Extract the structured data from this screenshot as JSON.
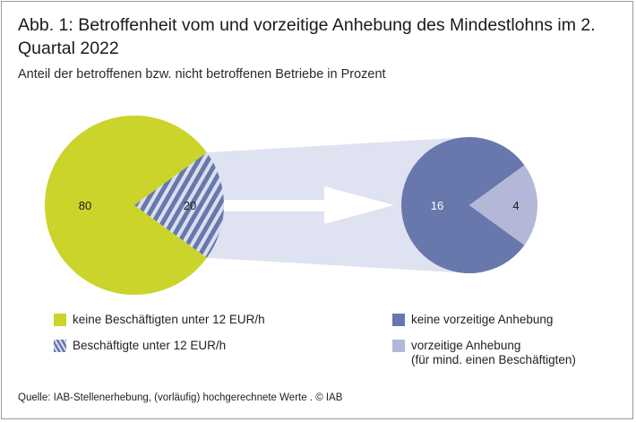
{
  "title": "Abb. 1: Betroffenheit vom und vorzeitige Anhebung  des Mindestlohns im 2. Quartal 2022",
  "subtitle": "Anteil der betroffenen bzw. nicht betroffenen Betriebe in Prozent",
  "colors": {
    "olive": "#cad42b",
    "blue": "#6878ad",
    "light_blue": "#b3b8d8",
    "connector": "#dfe2f1"
  },
  "chart_data": [
    {
      "type": "pie",
      "categories": [
        "keine Beschäftigten unter 12 EUR/h",
        "Beschäftigte unter 12 EUR/h"
      ],
      "values": [
        80,
        20
      ],
      "data_labels": [
        "80",
        "20"
      ]
    },
    {
      "type": "pie",
      "categories": [
        "keine vorzeitige Anhebung",
        "vorzeitige Anhebung (für mind. einen Beschäftigten)"
      ],
      "values": [
        16,
        4
      ],
      "data_labels": [
        "16",
        "4"
      ]
    }
  ],
  "legend": {
    "item1": "keine Beschäftigten unter 12 EUR/h",
    "item2": "Beschäftigte unter 12 EUR/h",
    "item3": "keine vorzeitige Anhebung",
    "item4_line1": "vorzeitige Anhebung",
    "item4_line2": "(für mind. einen Beschäftigten)"
  },
  "source": "Quelle: IAB-Stellenerhebung, (vorläufig) hochgerechnete Werte . © IAB"
}
